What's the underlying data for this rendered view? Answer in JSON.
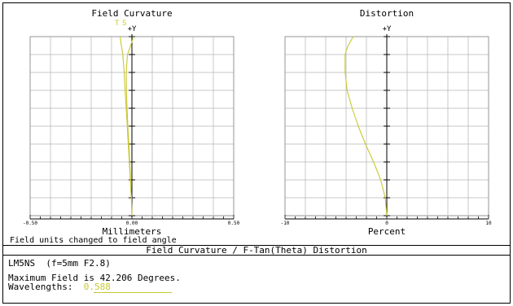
{
  "field_note": "Field units changed to field angle",
  "report_title": "Field Curvature / F-Tan(Theta) Distortion",
  "lens_name": "LM5NS  (f=5mm F2.8)",
  "max_field_line": "Maximum Field is 42.206 Degrees.",
  "wavelengths_label": "Wavelengths:",
  "wavelengths_value": "0.588",
  "colors": {
    "curve": "#c8c832",
    "grid": "#b4b4b4",
    "axis": "#000000"
  },
  "chart_data": [
    {
      "type": "line",
      "title": "Field Curvature",
      "y_axis_label": "+Y",
      "xlabel": "Millimeters",
      "xlim": [
        -0.5,
        0.5
      ],
      "x_tick_labels": [
        "-0.50",
        "0.00",
        "0.50"
      ],
      "ylim": [
        0,
        1
      ],
      "legend": [
        "T",
        "S"
      ],
      "grid": true,
      "series": [
        {
          "name": "T",
          "x": [
            0.0,
            -0.003,
            -0.008,
            -0.013,
            -0.018,
            -0.023,
            -0.028,
            -0.034,
            -0.038,
            -0.045,
            -0.052,
            -0.058
          ],
          "y": [
            0.0,
            0.1,
            0.2,
            0.3,
            0.4,
            0.5,
            0.6,
            0.7,
            0.8,
            0.9,
            0.95,
            1.0
          ]
        },
        {
          "name": "S",
          "x": [
            0.0,
            -0.003,
            -0.007,
            -0.011,
            -0.015,
            -0.02,
            -0.024,
            -0.027,
            -0.028,
            -0.022,
            -0.006,
            0.008
          ],
          "y": [
            0.0,
            0.1,
            0.2,
            0.3,
            0.4,
            0.5,
            0.6,
            0.7,
            0.8,
            0.9,
            0.95,
            1.0
          ]
        }
      ]
    },
    {
      "type": "line",
      "title": "Distortion",
      "y_axis_label": "+Y",
      "xlabel": "Percent",
      "xlim": [
        -10,
        10
      ],
      "x_tick_labels": [
        "-10",
        "0",
        "10"
      ],
      "ylim": [
        0,
        1
      ],
      "grid": true,
      "series": [
        {
          "x": [
            0.0,
            -0.15,
            -0.6,
            -1.3,
            -2.1,
            -2.8,
            -3.4,
            -3.9,
            -4.1,
            -4.1,
            -3.8,
            -3.3
          ],
          "y": [
            0.0,
            0.1,
            0.2,
            0.3,
            0.4,
            0.5,
            0.6,
            0.7,
            0.8,
            0.9,
            0.95,
            1.0
          ]
        }
      ]
    }
  ]
}
